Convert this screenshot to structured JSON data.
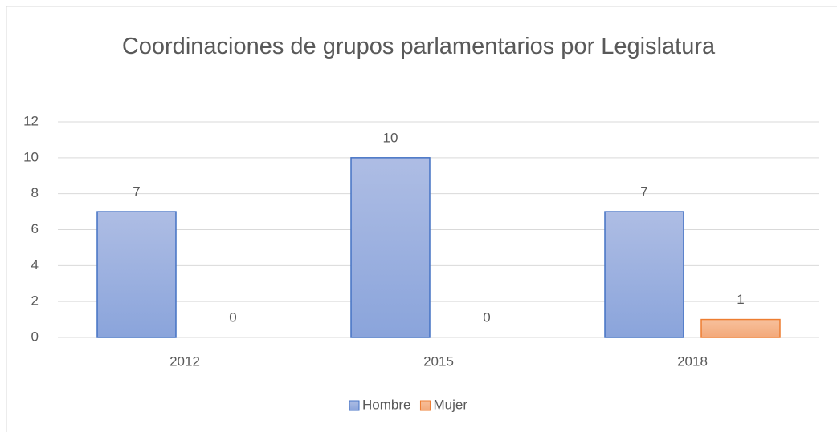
{
  "chart_data": {
    "type": "bar",
    "title": "Coordinaciones de grupos parlamentarios por Legislatura",
    "categories": [
      "2012",
      "2015",
      "2018"
    ],
    "series": [
      {
        "name": "Hombre",
        "color": "#8faadc",
        "values": [
          7,
          10,
          7
        ]
      },
      {
        "name": "Mujer",
        "color": "#f4b183",
        "values": [
          0,
          0,
          1
        ]
      }
    ],
    "ylim": [
      0,
      12
    ],
    "yticks": [
      0,
      2,
      4,
      6,
      8,
      10,
      12
    ],
    "grid": true,
    "legend": "bottom"
  }
}
